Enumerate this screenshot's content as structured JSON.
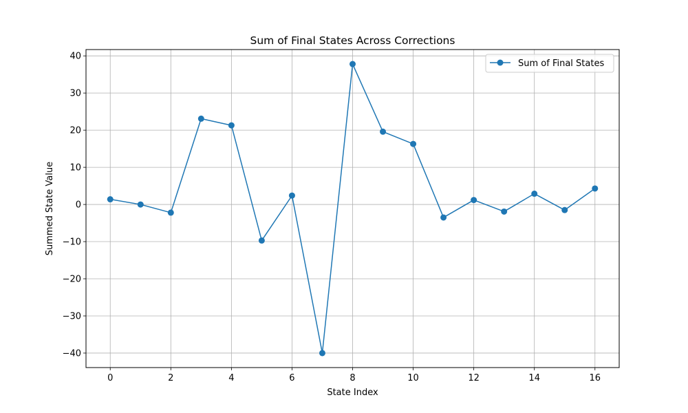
{
  "chart_data": {
    "type": "line",
    "title": "Sum of Final States Across Corrections",
    "xlabel": "State Index",
    "ylabel": "Summed State Value",
    "x": [
      0,
      1,
      2,
      3,
      4,
      5,
      6,
      7,
      8,
      9,
      10,
      11,
      12,
      13,
      14,
      15,
      16
    ],
    "series": [
      {
        "name": "Sum of Final States",
        "color": "#1f77b4",
        "marker": "circle",
        "values": [
          1.4,
          0.0,
          -2.2,
          23.1,
          21.3,
          -9.7,
          2.4,
          -40.0,
          37.8,
          19.6,
          16.3,
          -3.5,
          1.2,
          -1.9,
          2.9,
          -1.5,
          4.3
        ]
      }
    ],
    "xlim": [
      -0.8,
      16.8
    ],
    "ylim": [
      -43.9,
      41.7
    ],
    "xticks": [
      0,
      2,
      4,
      6,
      8,
      10,
      12,
      14,
      16
    ],
    "xtick_labels": [
      "0",
      "2",
      "4",
      "6",
      "8",
      "10",
      "12",
      "14",
      "16"
    ],
    "yticks": [
      -40,
      -30,
      -20,
      -10,
      0,
      10,
      20,
      30,
      40
    ],
    "ytick_labels": [
      "−40",
      "−30",
      "−20",
      "−10",
      "0",
      "10",
      "20",
      "30",
      "40"
    ],
    "grid": true,
    "legend_position": "upper right"
  }
}
